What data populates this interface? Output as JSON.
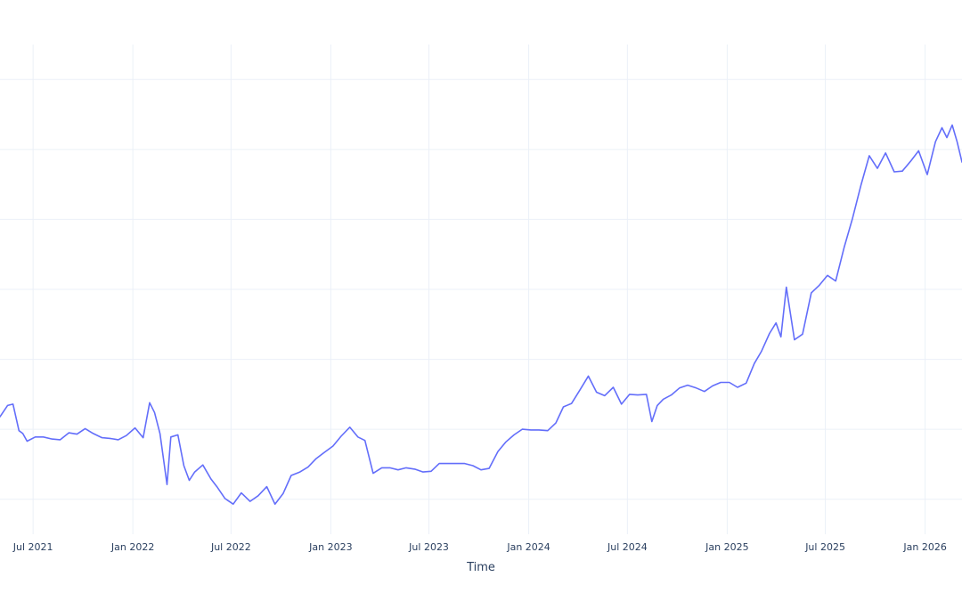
{
  "chart_data": {
    "type": "line",
    "title": "",
    "xlabel": "Time",
    "ylabel": "",
    "grid": true,
    "x_ticks": [
      {
        "label": "Jul 2021",
        "date": "2021-07-01"
      },
      {
        "label": "Jan 2022",
        "date": "2022-01-01"
      },
      {
        "label": "Jul 2022",
        "date": "2022-07-01"
      },
      {
        "label": "Jan 2023",
        "date": "2023-01-01"
      },
      {
        "label": "Jul 2023",
        "date": "2023-07-01"
      },
      {
        "label": "Jan 2024",
        "date": "2024-01-01"
      },
      {
        "label": "Jul 2024",
        "date": "2024-07-01"
      },
      {
        "label": "Jan 2025",
        "date": "2025-01-01"
      },
      {
        "label": "Jul 2025",
        "date": "2025-07-01"
      },
      {
        "label": "Jan 2026",
        "date": "2026-01-01"
      }
    ],
    "xlim": [
      "2021-05-01",
      "2026-03-10"
    ],
    "ylim": [
      30,
      100
    ],
    "y_gridlines": [
      35,
      45,
      55,
      65,
      75,
      85,
      95
    ],
    "colors": {
      "series": "#636efa",
      "grid": "#ebf0f8",
      "text": "#2a3f5f"
    },
    "series": [
      {
        "x": [
          "2021-05-01",
          "2021-05-15",
          "2021-05-25",
          "2021-06-05",
          "2021-06-12",
          "2021-06-20",
          "2021-07-05",
          "2021-07-20",
          "2021-08-05",
          "2021-08-20",
          "2021-09-05",
          "2021-09-20",
          "2021-10-05",
          "2021-10-20",
          "2021-11-05",
          "2021-11-20",
          "2021-12-05",
          "2021-12-20",
          "2022-01-05",
          "2022-01-20",
          "2022-02-01",
          "2022-02-10",
          "2022-02-20",
          "2022-03-05",
          "2022-03-12",
          "2022-03-25",
          "2022-04-05",
          "2022-04-15",
          "2022-04-25",
          "2022-05-10",
          "2022-05-25",
          "2022-06-05",
          "2022-06-20",
          "2022-07-05",
          "2022-07-20",
          "2022-08-05",
          "2022-08-20",
          "2022-09-05",
          "2022-09-20",
          "2022-10-05",
          "2022-10-20",
          "2022-11-05",
          "2022-11-20",
          "2022-12-05",
          "2022-12-20",
          "2023-01-05",
          "2023-01-20",
          "2023-02-05",
          "2023-02-20",
          "2023-03-05",
          "2023-03-20",
          "2023-04-05",
          "2023-04-20",
          "2023-05-05",
          "2023-05-20",
          "2023-06-05",
          "2023-06-20",
          "2023-07-05",
          "2023-07-20",
          "2023-08-05",
          "2023-08-20",
          "2023-09-05",
          "2023-09-20",
          "2023-10-05",
          "2023-10-20",
          "2023-11-05",
          "2023-11-20",
          "2023-12-05",
          "2023-12-20",
          "2024-01-05",
          "2024-01-20",
          "2024-02-05",
          "2024-02-20",
          "2024-03-05",
          "2024-03-20",
          "2024-04-05",
          "2024-04-20",
          "2024-05-05",
          "2024-05-20",
          "2024-06-05",
          "2024-06-20",
          "2024-07-05",
          "2024-07-20",
          "2024-08-05",
          "2024-08-15",
          "2024-08-25",
          "2024-09-05",
          "2024-09-20",
          "2024-10-05",
          "2024-10-20",
          "2024-11-05",
          "2024-11-20",
          "2024-12-05",
          "2024-12-20",
          "2025-01-05",
          "2025-01-20",
          "2025-02-05",
          "2025-02-20",
          "2025-03-05",
          "2025-03-20",
          "2025-04-01",
          "2025-04-10",
          "2025-04-20",
          "2025-05-05",
          "2025-05-20",
          "2025-06-05",
          "2025-06-20",
          "2025-07-05",
          "2025-07-20",
          "2025-08-05",
          "2025-08-20",
          "2025-09-05",
          "2025-09-20",
          "2025-10-05",
          "2025-10-20",
          "2025-11-05",
          "2025-11-20",
          "2025-12-05",
          "2025-12-20",
          "2026-01-05",
          "2026-01-20",
          "2026-02-01",
          "2026-02-10",
          "2026-02-20",
          "2026-03-01",
          "2026-03-10"
        ],
        "y": [
          46.8,
          48.4,
          48.6,
          44.8,
          44.4,
          43.3,
          43.9,
          43.9,
          43.6,
          43.5,
          44.5,
          44.3,
          45.1,
          44.4,
          43.8,
          43.7,
          43.5,
          44.1,
          45.2,
          43.8,
          48.8,
          47.4,
          44.4,
          37.1,
          43.9,
          44.2,
          39.8,
          37.7,
          38.9,
          39.9,
          37.9,
          36.8,
          35.1,
          34.3,
          35.9,
          34.7,
          35.5,
          36.8,
          34.3,
          35.8,
          38.4,
          38.9,
          39.6,
          40.8,
          41.7,
          42.6,
          44.0,
          45.3,
          43.9,
          43.4,
          38.7,
          39.5,
          39.5,
          39.2,
          39.5,
          39.3,
          38.9,
          39.0,
          40.1,
          40.1,
          40.1,
          40.1,
          39.8,
          39.2,
          39.4,
          41.8,
          43.2,
          44.2,
          45.0,
          44.9,
          44.9,
          44.8,
          45.9,
          48.2,
          48.7,
          50.7,
          52.6,
          50.3,
          49.8,
          51.0,
          48.6,
          50.0,
          49.9,
          50.0,
          46.1,
          48.4,
          49.3,
          49.9,
          50.9,
          51.3,
          50.9,
          50.4,
          51.2,
          51.7,
          51.7,
          51.0,
          51.6,
          54.4,
          56.1,
          58.7,
          60.2,
          58.2,
          65.3,
          57.8,
          58.6,
          64.5,
          65.6,
          67.0,
          66.2,
          71.1,
          75.1,
          80.0,
          84.1,
          82.3,
          84.5,
          81.8,
          81.9,
          83.3,
          84.8,
          81.4,
          86.1,
          88.1,
          86.7,
          88.5,
          86.1,
          83.2
        ]
      }
    ]
  }
}
